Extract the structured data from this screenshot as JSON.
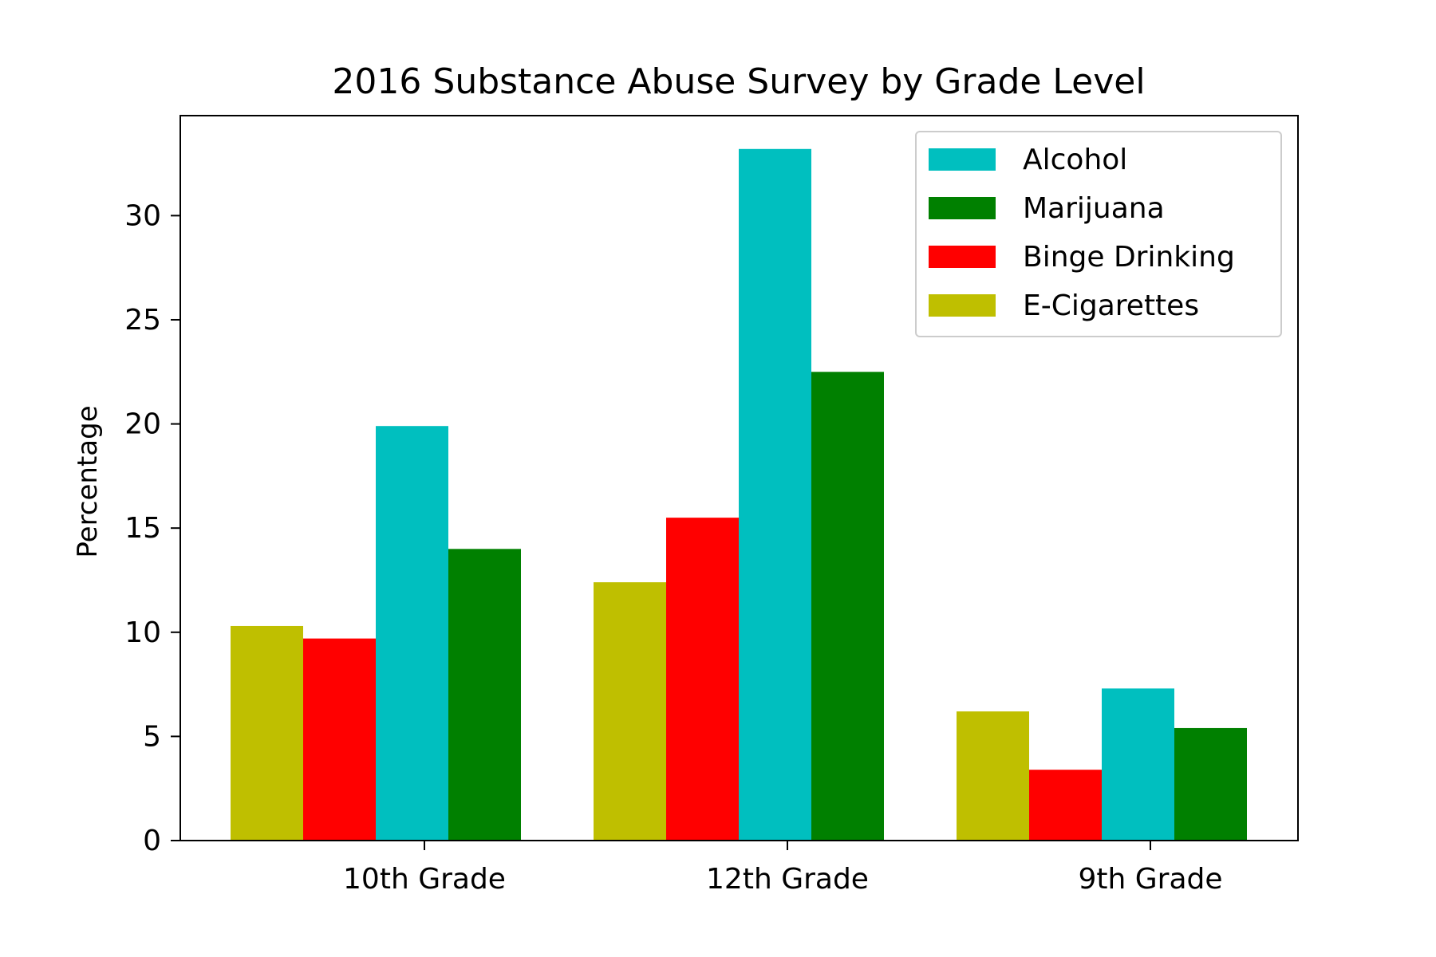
{
  "chart_data": {
    "type": "bar",
    "title": "2016 Substance Abuse Survey by Grade Level",
    "xlabel": "",
    "ylabel": "Percentage",
    "categories": [
      "10th Grade",
      "12th Grade",
      "9th Grade"
    ],
    "ylim": [
      0,
      34.8
    ],
    "yticks": [
      0,
      5,
      10,
      15,
      20,
      25,
      30
    ],
    "grid": false,
    "legend_position": "top-right",
    "series": [
      {
        "name": "E-Cigarettes",
        "color": "#bfbf00",
        "values": [
          10.3,
          12.4,
          6.2
        ]
      },
      {
        "name": "Binge Drinking",
        "color": "#ff0000",
        "values": [
          9.7,
          15.5,
          3.4
        ]
      },
      {
        "name": "Alcohol",
        "color": "#00bfbf",
        "values": [
          19.9,
          33.2,
          7.3
        ]
      },
      {
        "name": "Marijuana",
        "color": "#008000",
        "values": [
          14.0,
          22.5,
          5.4
        ]
      }
    ],
    "legend_order": [
      "Alcohol",
      "Marijuana",
      "Binge Drinking",
      "E-Cigarettes"
    ]
  }
}
